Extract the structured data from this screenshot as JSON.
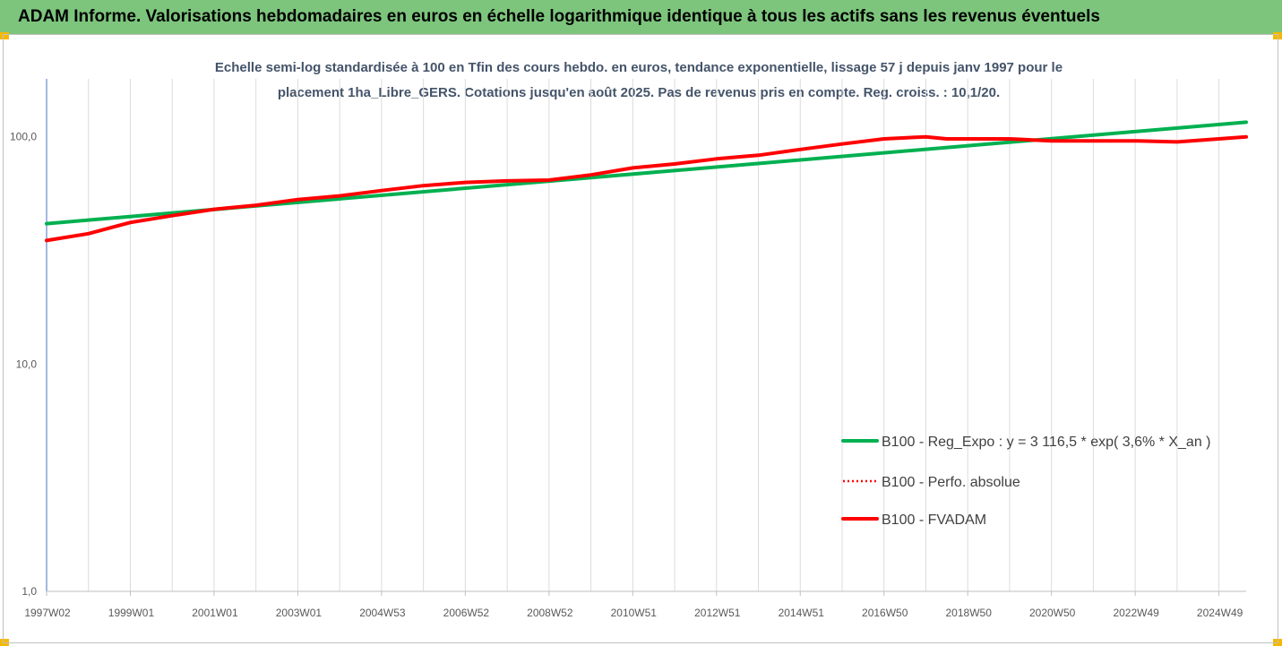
{
  "header": {
    "title": "ADAM Informe. Valorisations hebdomadaires en euros en échelle logarithmique identique à tous les actifs sans les revenus éventuels"
  },
  "colors": {
    "header_bg": "#7dc57d",
    "accent": "#f5b800",
    "reg": "#00b050",
    "perf": "#ff0000",
    "fvadam": "#ff0000"
  },
  "chart_data": {
    "type": "line",
    "title": "Echelle semi-log standardisée à 100 en Tfin des cours hebdo. en euros, tendance exponentielle, lissage 57 j depuis janv 1997 pour le placement 1ha_Libre_GERS. Cotations jusqu'en août 2025. Pas de revenus pris en compte. Reg. croiss. : 10,1/20.",
    "subtitle_lines": [
      "Echelle semi-log standardisée à 100 en Tfin des cours hebdo. en euros, tendance exponentielle, lissage 57 j depuis janv 1997 pour le",
      "placement 1ha_Libre_GERS. Cotations jusqu'en août 2025. Pas de revenus pris en compte. Reg. croiss. : 10,1/20."
    ],
    "y_scale": "log",
    "ylim": [
      1,
      180
    ],
    "y_ticks": [
      1,
      10,
      100
    ],
    "y_tick_labels": [
      "1,0",
      "10,0",
      "100,0"
    ],
    "x_range": [
      1997.0,
      2025.65
    ],
    "x_tick_labels": [
      "1997W02",
      "1999W01",
      "2001W01",
      "2003W01",
      "2004W53",
      "2006W52",
      "2008W52",
      "2010W51",
      "2012W51",
      "2014W51",
      "2016W50",
      "2018W50",
      "2020W50",
      "2022W49",
      "2024W49"
    ],
    "x_tick_positions": [
      1997.0,
      1999.0,
      2001.0,
      2003.0,
      2005.0,
      2007.0,
      2009.0,
      2011.0,
      2013.0,
      2015.0,
      2017.0,
      2019.0,
      2021.0,
      2023.0,
      2025.0
    ],
    "grid": {
      "vertical": true,
      "horizontal": false
    },
    "legend_position": "right",
    "series": [
      {
        "name": "B100 - Reg_Expo : y = 3 116,5 * exp( 3,6% *  X_an )",
        "style": "solid-thick",
        "color": "#00b050",
        "x": [
          1997.0,
          2025.65
        ],
        "y": [
          41.5,
          116
        ]
      },
      {
        "name": "B100 - Perfo. absolue",
        "style": "dotted",
        "color": "#ff0000",
        "x": [
          1997.0,
          1998.0,
          1999.0,
          2000.0,
          2001.0,
          2002.0,
          2003.0,
          2004.0,
          2005.0,
          2006.0,
          2007.0,
          2008.0,
          2009.0,
          2010.0,
          2011.0,
          2012.0,
          2013.0,
          2014.0,
          2015.0,
          2016.0,
          2017.0,
          2018.0,
          2018.5,
          2019.0,
          2020.0,
          2021.0,
          2022.0,
          2023.0,
          2024.0,
          2025.0,
          2025.65
        ],
        "y": [
          35,
          37.5,
          42,
          45,
          48,
          50,
          53,
          55,
          58,
          61,
          63,
          64,
          64.5,
          68,
          73,
          76,
          80,
          83,
          88,
          93,
          98,
          100,
          98,
          98,
          98,
          96,
          96,
          96,
          95,
          98,
          100
        ]
      },
      {
        "name": "B100 - FVADAM",
        "style": "solid-thick",
        "color": "#ff0000",
        "x": [
          1997.0,
          1998.0,
          1999.0,
          2000.0,
          2001.0,
          2002.0,
          2003.0,
          2004.0,
          2005.0,
          2006.0,
          2007.0,
          2008.0,
          2009.0,
          2010.0,
          2011.0,
          2012.0,
          2013.0,
          2014.0,
          2015.0,
          2016.0,
          2017.0,
          2018.0,
          2018.5,
          2019.0,
          2020.0,
          2021.0,
          2022.0,
          2023.0,
          2024.0,
          2025.0,
          2025.65
        ],
        "y": [
          35,
          37.5,
          42,
          45,
          48,
          50,
          53,
          55,
          58,
          61,
          63,
          64,
          64.5,
          68,
          73,
          76,
          80,
          83,
          88,
          93,
          98,
          100,
          98,
          98,
          98,
          96,
          96,
          96,
          95,
          98,
          100
        ]
      }
    ]
  }
}
